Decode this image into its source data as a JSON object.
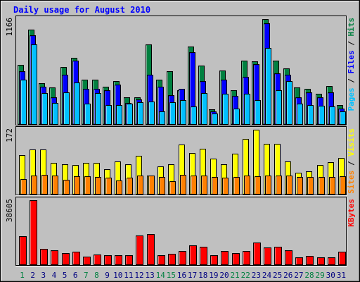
{
  "chart_data": {
    "type": "bar",
    "title": "Daily usage for August 2010",
    "x": [
      "1",
      "2",
      "3",
      "4",
      "5",
      "6",
      "7",
      "8",
      "9",
      "10",
      "11",
      "12",
      "13",
      "14",
      "15",
      "16",
      "17",
      "18",
      "19",
      "20",
      "21",
      "22",
      "23",
      "24",
      "25",
      "26",
      "27",
      "28",
      "29",
      "30",
      "31"
    ],
    "weekend_days": [
      "1",
      "7",
      "8",
      "14",
      "15",
      "21",
      "22",
      "28",
      "29"
    ],
    "panels": [
      {
        "id": "top",
        "ymax_label": "1166",
        "ylim": [
          0,
          1166
        ],
        "right_label": [
          {
            "text": "Pages",
            "color": "#00c0ff"
          },
          {
            "text": " / ",
            "color": "#000000"
          },
          {
            "text": "Files",
            "color": "#0000ff"
          },
          {
            "text": " / ",
            "color": "#000000"
          },
          {
            "text": "Hits",
            "color": "#008040"
          }
        ],
        "series": [
          {
            "name": "Hits",
            "color": "#008040",
            "values": [
              660,
              1050,
              460,
              410,
              640,
              740,
              500,
              500,
              420,
              480,
              300,
              300,
              890,
              500,
              590,
              380,
              860,
              650,
              170,
              600,
              380,
              710,
              700,
              1166,
              710,
              620,
              410,
              400,
              340,
              430,
              220
            ]
          },
          {
            "name": "Files",
            "color": "#0000ff",
            "values": [
              590,
              990,
              420,
              300,
              550,
              710,
              400,
              400,
              380,
              440,
              240,
              280,
              550,
              420,
              330,
              400,
              800,
              480,
              150,
              500,
              320,
              530,
              670,
              1120,
              570,
              550,
              300,
              360,
              300,
              360,
              180
            ]
          },
          {
            "name": "Pages",
            "color": "#00c0ff",
            "values": [
              500,
              890,
              350,
              240,
              360,
              470,
              230,
              350,
              220,
              220,
              230,
              250,
              260,
              150,
              250,
              270,
              200,
              350,
              125,
              340,
              180,
              340,
              270,
              850,
              380,
              480,
              230,
              220,
              210,
              200,
              150
            ]
          }
        ]
      },
      {
        "id": "middle",
        "ymax_label": "172",
        "ylim": [
          0,
          172
        ],
        "right_label": [
          {
            "text": "Sites",
            "color": "#ff8000"
          },
          {
            "text": " / ",
            "color": "#000000"
          },
          {
            "text": "Visits",
            "color": "#ffff00"
          }
        ],
        "series": [
          {
            "name": "Visits",
            "color": "#ffff00",
            "values": [
              105,
              120,
              120,
              85,
              80,
              78,
              85,
              85,
              68,
              88,
              80,
              102,
              50,
              75,
              80,
              133,
              110,
              122,
              95,
              80,
              108,
              148,
              172,
              134,
              134,
              88,
              58,
              62,
              79,
              86,
              98
            ]
          },
          {
            "name": "Sites",
            "color": "#ff8000",
            "values": [
              42,
              50,
              52,
              50,
              40,
              48,
              48,
              46,
              45,
              38,
              45,
              50,
              50,
              46,
              36,
              52,
              50,
              50,
              46,
              44,
              46,
              50,
              48,
              50,
              50,
              50,
              46,
              46,
              46,
              46,
              48
            ]
          }
        ]
      },
      {
        "id": "bottom",
        "ymax_label": "38605",
        "ylim": [
          0,
          38605
        ],
        "right_label": [
          {
            "text": "KBytes",
            "color": "#ff0000"
          }
        ],
        "series": [
          {
            "name": "KBytes",
            "color": "#ff0000",
            "values": [
              17000,
              38605,
              9500,
              9000,
              7000,
              8000,
              5000,
              6500,
              6000,
              6000,
              6000,
              17700,
              18300,
              5800,
              6800,
              8300,
              11900,
              10900,
              5900,
              8300,
              7200,
              8600,
              13600,
              10300,
              10900,
              8800,
              4800,
              5300,
              4800,
              4800,
              7800
            ]
          }
        ]
      }
    ]
  }
}
